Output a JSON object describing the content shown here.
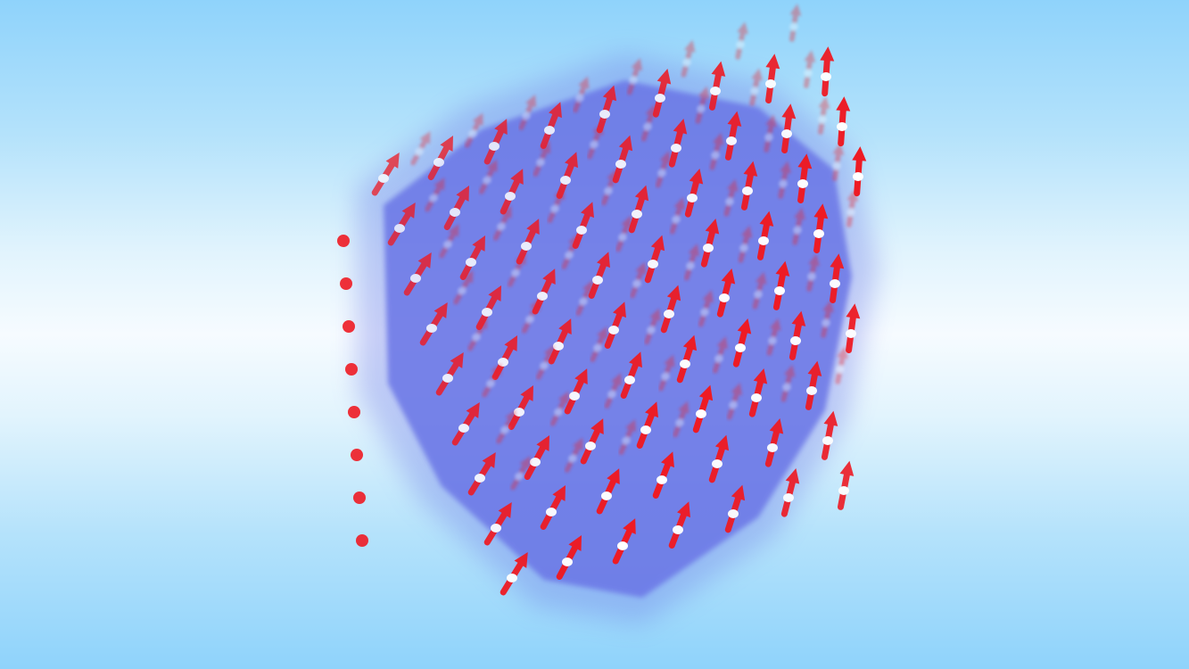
{
  "scene": {
    "subject": "lattice-of-spin-arrows",
    "colors": {
      "background_edge": "#8fd3fb",
      "background_center": "#f6fbff",
      "volume": "#6b76e6",
      "arrow": "#ee1b24",
      "pivot": "#ffffff"
    }
  }
}
